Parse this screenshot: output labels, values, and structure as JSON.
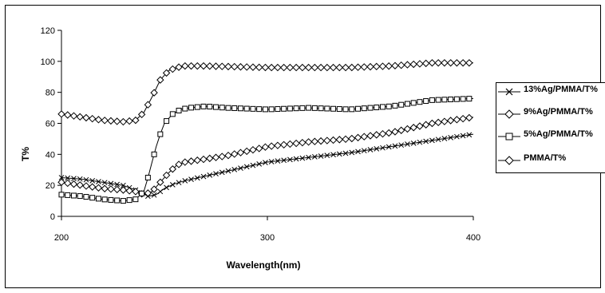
{
  "chart_data": {
    "type": "line",
    "title": "",
    "xlabel": "Wavelength(nm)",
    "ylabel": "T%",
    "xlim": [
      200,
      400
    ],
    "ylim": [
      0,
      120
    ],
    "x_ticks": [
      "200",
      "300",
      "400"
    ],
    "y_ticks": [
      "0",
      "20",
      "40",
      "60",
      "80",
      "100",
      "120"
    ],
    "grid": false,
    "legend_position": "right",
    "series": [
      {
        "name": "13%Ag/PMMA/T%",
        "marker": "x",
        "x": [
          200,
          210,
          220,
          230,
          238,
          242,
          246,
          250,
          255,
          260,
          270,
          280,
          290,
          300,
          320,
          340,
          360,
          380,
          400
        ],
        "y": [
          25,
          24,
          22,
          20,
          16,
          13,
          14,
          18,
          21,
          23,
          26,
          29,
          32,
          35,
          38,
          41,
          45,
          49,
          53
        ]
      },
      {
        "name": "9%Ag/PMMA/T%",
        "marker": "diamond",
        "x": [
          200,
          210,
          220,
          230,
          236,
          240,
          244,
          248,
          252,
          256,
          260,
          270,
          280,
          290,
          300,
          320,
          340,
          360,
          380,
          400
        ],
        "y": [
          22,
          20,
          18,
          17,
          16,
          14,
          16,
          22,
          28,
          33,
          35,
          37,
          39,
          42,
          45,
          48,
          50,
          54,
          60,
          64
        ]
      },
      {
        "name": "5%Ag/PMMA/T%",
        "marker": "square",
        "x": [
          200,
          210,
          220,
          230,
          236,
          240,
          242,
          244,
          246,
          248,
          250,
          254,
          258,
          262,
          270,
          280,
          300,
          320,
          340,
          360,
          380,
          400
        ],
        "y": [
          14,
          13,
          11,
          10,
          11,
          16,
          25,
          35,
          45,
          53,
          60,
          66,
          69,
          70,
          71,
          70,
          69,
          70,
          69,
          71,
          75,
          76
        ]
      },
      {
        "name": "PMMA/T%",
        "marker": "diamond",
        "x": [
          200,
          210,
          220,
          230,
          236,
          240,
          244,
          248,
          252,
          256,
          260,
          270,
          300,
          320,
          340,
          360,
          380,
          400
        ],
        "y": [
          66,
          64,
          62,
          61,
          62,
          67,
          77,
          88,
          94,
          96,
          97,
          97,
          96,
          96,
          96,
          97,
          99,
          99
        ]
      }
    ]
  }
}
